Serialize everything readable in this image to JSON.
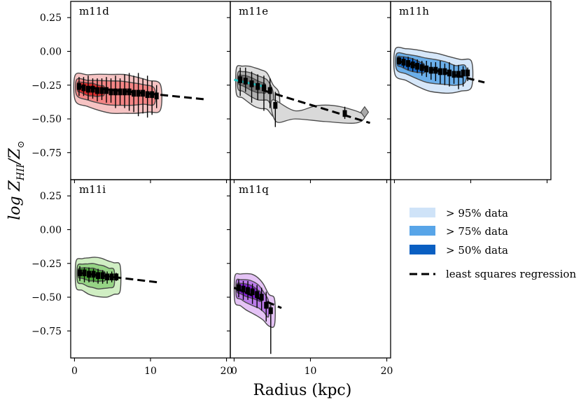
{
  "figure": {
    "ylabel": "log Z_HII / Z_⊙",
    "ylabel_main": "log Z",
    "ylabel_sub": "HII",
    "ylabel_den": "/Z",
    "ylabel_sun": "⊙",
    "xlabel": "Radius (kpc)"
  },
  "legend": {
    "items": [
      {
        "label": "> 95% data",
        "color": "#cfe3f8"
      },
      {
        "label": "> 75% data",
        "color": "#58a5e8"
      },
      {
        "label": "> 50% data",
        "color": "#0a5fc2"
      },
      {
        "label": "least squares regression",
        "color": "#000000"
      }
    ]
  },
  "chart_data": [
    {
      "type": "scatter",
      "title": "m11d",
      "colors": {
        "outer": "#f5b8b8",
        "mid": "#f27a7a",
        "inner": "#d52020"
      },
      "xlim": [
        -0.5,
        20.5
      ],
      "ylim": [
        -0.95,
        0.37
      ],
      "xticks": [
        0,
        10,
        20
      ],
      "yticks": [
        -0.75,
        -0.5,
        -0.25,
        0.0,
        0.25
      ],
      "ytick_labels": [
        "−0.75",
        "−0.50",
        "−0.25",
        "0.00",
        "0.25"
      ],
      "xtick_labels": [],
      "points": [
        {
          "x": 0.6,
          "y": -0.26,
          "lo": -0.33,
          "hi": -0.19
        },
        {
          "x": 1.2,
          "y": -0.27,
          "lo": -0.33,
          "hi": -0.19
        },
        {
          "x": 1.8,
          "y": -0.28,
          "lo": -0.36,
          "hi": -0.18
        },
        {
          "x": 2.4,
          "y": -0.28,
          "lo": -0.35,
          "hi": -0.2
        },
        {
          "x": 3.0,
          "y": -0.29,
          "lo": -0.37,
          "hi": -0.2
        },
        {
          "x": 3.6,
          "y": -0.29,
          "lo": -0.36,
          "hi": -0.2
        },
        {
          "x": 4.2,
          "y": -0.29,
          "lo": -0.38,
          "hi": -0.19
        },
        {
          "x": 4.8,
          "y": -0.3,
          "lo": -0.38,
          "hi": -0.2
        },
        {
          "x": 5.4,
          "y": -0.3,
          "lo": -0.42,
          "hi": -0.18
        },
        {
          "x": 6.0,
          "y": -0.3,
          "lo": -0.4,
          "hi": -0.2
        },
        {
          "x": 6.6,
          "y": -0.3,
          "lo": -0.42,
          "hi": -0.17
        },
        {
          "x": 7.2,
          "y": -0.3,
          "lo": -0.44,
          "hi": -0.16
        },
        {
          "x": 7.8,
          "y": -0.31,
          "lo": -0.45,
          "hi": -0.18
        },
        {
          "x": 8.4,
          "y": -0.31,
          "lo": -0.48,
          "hi": -0.16
        },
        {
          "x": 9.0,
          "y": -0.31,
          "lo": -0.46,
          "hi": -0.2
        },
        {
          "x": 9.6,
          "y": -0.32,
          "lo": -0.49,
          "hi": -0.18
        },
        {
          "x": 10.2,
          "y": -0.32,
          "lo": -0.47,
          "hi": -0.22
        },
        {
          "x": 10.8,
          "y": -0.33,
          "lo": -0.42,
          "hi": -0.25
        }
      ],
      "fit": {
        "x0": 0.4,
        "y0": -0.26,
        "x1": 17.2,
        "y1": -0.355
      }
    },
    {
      "type": "scatter",
      "title": "m11e",
      "colors": {
        "outer": "#d9d9d9",
        "mid": "#a9a9a9",
        "inner": "#6e6e6e"
      },
      "xlim": [
        -0.5,
        20.5
      ],
      "ylim": [
        -0.95,
        0.37
      ],
      "xticks": [
        0,
        10,
        20
      ],
      "yticks": [
        -0.75,
        -0.5,
        -0.25,
        0.0,
        0.25
      ],
      "ytick_labels": [],
      "xtick_labels": [],
      "points": [
        {
          "x": 0.8,
          "y": -0.21,
          "lo": -0.33,
          "hi": -0.12
        },
        {
          "x": 1.5,
          "y": -0.22,
          "lo": -0.3,
          "hi": -0.12
        },
        {
          "x": 2.3,
          "y": -0.24,
          "lo": -0.38,
          "hi": -0.15
        },
        {
          "x": 3.1,
          "y": -0.26,
          "lo": -0.36,
          "hi": -0.17
        },
        {
          "x": 3.9,
          "y": -0.27,
          "lo": -0.44,
          "hi": -0.18
        },
        {
          "x": 4.7,
          "y": -0.29,
          "lo": -0.42,
          "hi": -0.2
        },
        {
          "x": 5.4,
          "y": -0.4,
          "lo": -0.56,
          "hi": -0.3
        },
        {
          "x": 14.5,
          "y": -0.46,
          "lo": -0.5,
          "hi": -0.41
        }
      ],
      "fit": {
        "x0": 3.9,
        "y0": -0.29,
        "x1": 17.8,
        "y1": -0.53
      },
      "fit2": {
        "x0": 0.0,
        "y0": -0.21,
        "x1": 3.9,
        "y1": -0.26,
        "color": "#1fbfbf"
      }
    },
    {
      "type": "scatter",
      "title": "m11h",
      "colors": {
        "outer": "#cfe3f8",
        "mid": "#58a5e8",
        "inner": "#0a5fc2"
      },
      "xlim": [
        -0.5,
        20.5
      ],
      "ylim": [
        -0.95,
        0.37
      ],
      "xticks": [
        0,
        10,
        20
      ],
      "yticks": [
        -0.75,
        -0.5,
        -0.25,
        0.0,
        0.25
      ],
      "ytick_labels": [],
      "xtick_labels": [],
      "points": [
        {
          "x": 0.6,
          "y": -0.07,
          "lo": -0.1,
          "hi": -0.04
        },
        {
          "x": 1.2,
          "y": -0.08,
          "lo": -0.12,
          "hi": -0.04
        },
        {
          "x": 1.8,
          "y": -0.09,
          "lo": -0.14,
          "hi": -0.04
        },
        {
          "x": 2.4,
          "y": -0.1,
          "lo": -0.15,
          "hi": -0.05
        },
        {
          "x": 3.0,
          "y": -0.11,
          "lo": -0.16,
          "hi": -0.06
        },
        {
          "x": 3.6,
          "y": -0.12,
          "lo": -0.18,
          "hi": -0.07
        },
        {
          "x": 4.2,
          "y": -0.13,
          "lo": -0.19,
          "hi": -0.07
        },
        {
          "x": 4.8,
          "y": -0.14,
          "lo": -0.21,
          "hi": -0.08
        },
        {
          "x": 5.4,
          "y": -0.14,
          "lo": -0.22,
          "hi": -0.08
        },
        {
          "x": 6.0,
          "y": -0.15,
          "lo": -0.24,
          "hi": -0.07
        },
        {
          "x": 6.6,
          "y": -0.15,
          "lo": -0.25,
          "hi": -0.09
        },
        {
          "x": 7.2,
          "y": -0.16,
          "lo": -0.26,
          "hi": -0.08
        },
        {
          "x": 7.8,
          "y": -0.17,
          "lo": -0.24,
          "hi": -0.1
        },
        {
          "x": 8.4,
          "y": -0.17,
          "lo": -0.28,
          "hi": -0.1
        },
        {
          "x": 9.0,
          "y": -0.16,
          "lo": -0.26,
          "hi": -0.11
        },
        {
          "x": 9.6,
          "y": -0.16,
          "lo": -0.22,
          "hi": -0.12
        }
      ],
      "fit": {
        "x0": 0.4,
        "y0": -0.07,
        "x1": 11.8,
        "y1": -0.23
      }
    },
    {
      "type": "scatter",
      "title": "m11i",
      "colors": {
        "outer": "#c8ebb8",
        "mid": "#8ccf7a",
        "inner": "#3f9a2e"
      },
      "xlim": [
        -0.5,
        20.5
      ],
      "ylim": [
        -0.95,
        0.37
      ],
      "xticks": [
        0,
        10,
        20
      ],
      "yticks": [
        -0.75,
        -0.5,
        -0.25,
        0.0,
        0.25
      ],
      "ytick_labels": [
        "−0.75",
        "−0.50",
        "−0.25",
        "0.00",
        "0.25"
      ],
      "xtick_labels": [
        "0",
        "10",
        "20"
      ],
      "points": [
        {
          "x": 0.7,
          "y": -0.32,
          "lo": -0.38,
          "hi": -0.27
        },
        {
          "x": 1.3,
          "y": -0.32,
          "lo": -0.39,
          "hi": -0.28
        },
        {
          "x": 1.9,
          "y": -0.33,
          "lo": -0.39,
          "hi": -0.28
        },
        {
          "x": 2.5,
          "y": -0.33,
          "lo": -0.39,
          "hi": -0.29
        },
        {
          "x": 3.1,
          "y": -0.34,
          "lo": -0.4,
          "hi": -0.29
        },
        {
          "x": 3.7,
          "y": -0.34,
          "lo": -0.4,
          "hi": -0.3
        },
        {
          "x": 4.3,
          "y": -0.35,
          "lo": -0.4,
          "hi": -0.31
        },
        {
          "x": 4.9,
          "y": -0.35,
          "lo": -0.39,
          "hi": -0.31
        },
        {
          "x": 5.5,
          "y": -0.35,
          "lo": -0.38,
          "hi": -0.32
        }
      ],
      "fit": {
        "x0": 0.5,
        "y0": -0.32,
        "x1": 11.0,
        "y1": -0.39
      }
    },
    {
      "type": "scatter",
      "title": "m11q",
      "colors": {
        "outer": "#e0b8f5",
        "mid": "#b46ee6",
        "inner": "#7a12d0"
      },
      "xlim": [
        -0.5,
        20.5
      ],
      "ylim": [
        -0.95,
        0.37
      ],
      "xticks": [
        0,
        10,
        20
      ],
      "yticks": [
        -0.75,
        -0.5,
        -0.25,
        0.0,
        0.25
      ],
      "ytick_labels": [],
      "xtick_labels": [
        "0",
        "10",
        "20"
      ],
      "points": [
        {
          "x": 0.6,
          "y": -0.43,
          "lo": -0.5,
          "hi": -0.37
        },
        {
          "x": 1.2,
          "y": -0.44,
          "lo": -0.52,
          "hi": -0.38
        },
        {
          "x": 1.8,
          "y": -0.45,
          "lo": -0.52,
          "hi": -0.38
        },
        {
          "x": 2.4,
          "y": -0.46,
          "lo": -0.55,
          "hi": -0.4
        },
        {
          "x": 3.0,
          "y": -0.48,
          "lo": -0.58,
          "hi": -0.41
        },
        {
          "x": 3.6,
          "y": -0.5,
          "lo": -0.6,
          "hi": -0.43
        },
        {
          "x": 4.2,
          "y": -0.56,
          "lo": -0.68,
          "hi": -0.46
        },
        {
          "x": 4.8,
          "y": -0.6,
          "lo": -0.92,
          "hi": -0.54
        }
      ],
      "fit": {
        "x0": 0.0,
        "y0": -0.43,
        "x1": 6.2,
        "y1": -0.58
      }
    }
  ]
}
